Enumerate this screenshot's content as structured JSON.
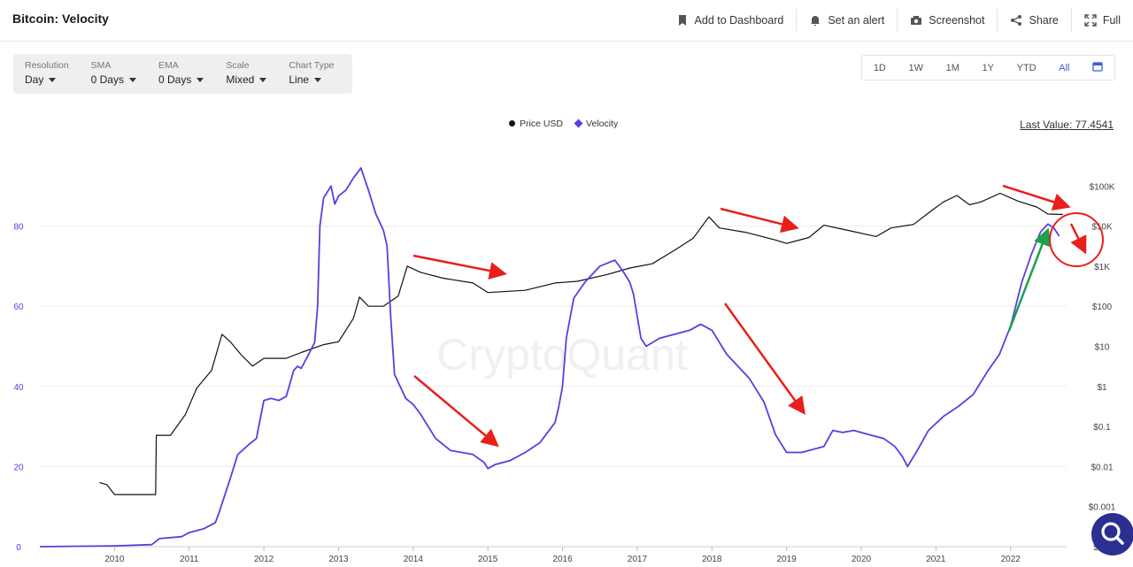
{
  "header": {
    "title": "Bitcoin: Velocity",
    "actions": [
      {
        "label": "Add to Dashboard",
        "icon": "bookmark-icon"
      },
      {
        "label": "Set an alert",
        "icon": "bell-icon"
      },
      {
        "label": "Screenshot",
        "icon": "camera-icon"
      },
      {
        "label": "Share",
        "icon": "share-icon"
      },
      {
        "label": "Full",
        "icon": "fullscreen-icon"
      }
    ]
  },
  "controls": [
    {
      "label": "Resolution",
      "value": "Day"
    },
    {
      "label": "SMA",
      "value": "0 Days"
    },
    {
      "label": "EMA",
      "value": "0 Days"
    },
    {
      "label": "Scale",
      "value": "Mixed"
    },
    {
      "label": "Chart Type",
      "value": "Line"
    }
  ],
  "ranges": [
    "1D",
    "1W",
    "1M",
    "1Y",
    "YTD",
    "All"
  ],
  "active_range": "All",
  "last_value": "Last Value: 77.4541",
  "watermark": "CryptoQuant",
  "colors": {
    "price": "#111111",
    "velocity": "#5640e0",
    "arrow_red": "#e8201b",
    "arrow_green": "#1aa34a",
    "accent": "#3b5bdb"
  },
  "chart_data": {
    "type": "line",
    "x_ticks": [
      "2010",
      "2011",
      "2012",
      "2013",
      "2014",
      "2015",
      "2016",
      "2017",
      "2018",
      "2019",
      "2020",
      "2021",
      "2022"
    ],
    "left_ticks": [
      "0",
      "20",
      "40",
      "60",
      "80"
    ],
    "right_ticks": [
      "$0.0",
      "$0.001",
      "$0.01",
      "$0.1",
      "$1",
      "$10",
      "$100",
      "$1K",
      "$10K",
      "$100K"
    ],
    "xlim": [
      2009.0,
      2022.75
    ],
    "ylim_left": [
      0,
      100
    ],
    "ylim_right_log10": [
      -4,
      6
    ],
    "grid": true,
    "legend_placement": "top-center",
    "series": [
      {
        "name": "Price USD",
        "axis": "right",
        "scale": "log",
        "points": [
          [
            2009.8,
            0.004
          ],
          [
            2009.9,
            0.0035
          ],
          [
            2010.0,
            0.002
          ],
          [
            2010.55,
            0.002
          ],
          [
            2010.56,
            0.06
          ],
          [
            2010.75,
            0.06
          ],
          [
            2010.95,
            0.2
          ],
          [
            2011.1,
            0.9
          ],
          [
            2011.3,
            2.5
          ],
          [
            2011.44,
            20
          ],
          [
            2011.55,
            13
          ],
          [
            2011.7,
            6
          ],
          [
            2011.85,
            3.2
          ],
          [
            2012.0,
            5
          ],
          [
            2012.3,
            5
          ],
          [
            2012.5,
            7
          ],
          [
            2012.8,
            11
          ],
          [
            2013.0,
            13
          ],
          [
            2013.2,
            50
          ],
          [
            2013.28,
            170
          ],
          [
            2013.4,
            100
          ],
          [
            2013.6,
            100
          ],
          [
            2013.8,
            180
          ],
          [
            2013.92,
            1000
          ],
          [
            2014.1,
            700
          ],
          [
            2014.4,
            500
          ],
          [
            2014.8,
            380
          ],
          [
            2015.0,
            220
          ],
          [
            2015.5,
            250
          ],
          [
            2015.9,
            380
          ],
          [
            2016.2,
            420
          ],
          [
            2016.6,
            620
          ],
          [
            2016.9,
            900
          ],
          [
            2017.2,
            1150
          ],
          [
            2017.5,
            2500
          ],
          [
            2017.75,
            5000
          ],
          [
            2017.96,
            17000
          ],
          [
            2018.1,
            9000
          ],
          [
            2018.45,
            7000
          ],
          [
            2018.85,
            4500
          ],
          [
            2019.0,
            3700
          ],
          [
            2019.3,
            5200
          ],
          [
            2019.5,
            10500
          ],
          [
            2019.8,
            8000
          ],
          [
            2020.2,
            5500
          ],
          [
            2020.4,
            9000
          ],
          [
            2020.7,
            11000
          ],
          [
            2020.95,
            25000
          ],
          [
            2021.1,
            40000
          ],
          [
            2021.28,
            58000
          ],
          [
            2021.45,
            34000
          ],
          [
            2021.6,
            40000
          ],
          [
            2021.86,
            66000
          ],
          [
            2022.1,
            42000
          ],
          [
            2022.35,
            30000
          ],
          [
            2022.5,
            20000
          ],
          [
            2022.7,
            19500
          ]
        ]
      },
      {
        "name": "Velocity",
        "axis": "left",
        "scale": "linear",
        "points": [
          [
            2009.0,
            0
          ],
          [
            2010.0,
            0.2
          ],
          [
            2010.5,
            0.5
          ],
          [
            2010.6,
            2
          ],
          [
            2010.9,
            2.5
          ],
          [
            2011.0,
            3.5
          ],
          [
            2011.2,
            4.5
          ],
          [
            2011.35,
            6
          ],
          [
            2011.4,
            8.5
          ],
          [
            2011.55,
            17
          ],
          [
            2011.65,
            23
          ],
          [
            2011.8,
            25.5
          ],
          [
            2011.9,
            27
          ],
          [
            2012.0,
            36.5
          ],
          [
            2012.1,
            37
          ],
          [
            2012.2,
            36.5
          ],
          [
            2012.3,
            37.5
          ],
          [
            2012.4,
            44
          ],
          [
            2012.45,
            45
          ],
          [
            2012.5,
            44.5
          ],
          [
            2012.6,
            48
          ],
          [
            2012.68,
            51
          ],
          [
            2012.72,
            60
          ],
          [
            2012.75,
            80
          ],
          [
            2012.8,
            87
          ],
          [
            2012.9,
            90
          ],
          [
            2012.95,
            85.5
          ],
          [
            2013.0,
            87.5
          ],
          [
            2013.1,
            89
          ],
          [
            2013.2,
            92
          ],
          [
            2013.3,
            94.5
          ],
          [
            2013.4,
            89
          ],
          [
            2013.5,
            83
          ],
          [
            2013.6,
            79
          ],
          [
            2013.65,
            75
          ],
          [
            2013.7,
            57
          ],
          [
            2013.75,
            43
          ],
          [
            2013.8,
            41
          ],
          [
            2013.9,
            37
          ],
          [
            2014.0,
            35.5
          ],
          [
            2014.1,
            33
          ],
          [
            2014.3,
            27
          ],
          [
            2014.5,
            24
          ],
          [
            2014.8,
            23
          ],
          [
            2014.95,
            21
          ],
          [
            2015.0,
            19.5
          ],
          [
            2015.1,
            20.5
          ],
          [
            2015.3,
            21.5
          ],
          [
            2015.5,
            23.5
          ],
          [
            2015.7,
            26
          ],
          [
            2015.9,
            31
          ],
          [
            2015.95,
            35
          ],
          [
            2016.0,
            40
          ],
          [
            2016.05,
            52
          ],
          [
            2016.15,
            62
          ],
          [
            2016.3,
            66
          ],
          [
            2016.5,
            70
          ],
          [
            2016.7,
            71.5
          ],
          [
            2016.8,
            69
          ],
          [
            2016.9,
            66
          ],
          [
            2016.95,
            63
          ],
          [
            2017.05,
            52
          ],
          [
            2017.12,
            50
          ],
          [
            2017.3,
            52
          ],
          [
            2017.5,
            53
          ],
          [
            2017.7,
            54
          ],
          [
            2017.85,
            55.5
          ],
          [
            2018.0,
            54
          ],
          [
            2018.2,
            48
          ],
          [
            2018.5,
            42
          ],
          [
            2018.7,
            36
          ],
          [
            2018.85,
            28
          ],
          [
            2019.0,
            23.5
          ],
          [
            2019.2,
            23.5
          ],
          [
            2019.5,
            25
          ],
          [
            2019.62,
            29
          ],
          [
            2019.75,
            28.5
          ],
          [
            2019.9,
            29
          ],
          [
            2020.1,
            28
          ],
          [
            2020.3,
            27
          ],
          [
            2020.45,
            25
          ],
          [
            2020.55,
            22.5
          ],
          [
            2020.62,
            20
          ],
          [
            2020.75,
            24
          ],
          [
            2020.9,
            29
          ],
          [
            2021.1,
            32.5
          ],
          [
            2021.3,
            35
          ],
          [
            2021.5,
            38
          ],
          [
            2021.7,
            44
          ],
          [
            2021.85,
            48
          ],
          [
            2022.0,
            55
          ],
          [
            2022.15,
            66
          ],
          [
            2022.28,
            73
          ],
          [
            2022.4,
            78.5
          ],
          [
            2022.5,
            80.5
          ],
          [
            2022.58,
            79.5
          ],
          [
            2022.65,
            77.5
          ]
        ]
      }
    ]
  }
}
